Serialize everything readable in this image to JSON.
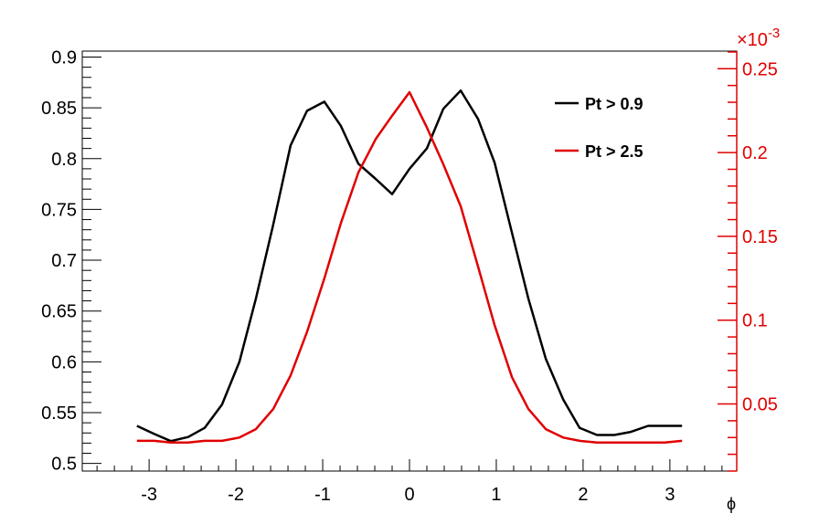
{
  "chart_data": {
    "type": "line",
    "title": "",
    "xlabel": "ϕ",
    "xlim": [
      -3.77,
      3.77
    ],
    "x_ticks": [
      -3,
      -2,
      -1,
      0,
      1,
      2,
      3
    ],
    "x_tick_labels": [
      "-3",
      "-2",
      "-1",
      "0",
      "1",
      "2",
      "3"
    ],
    "y_left": {
      "ylim": [
        0.4925,
        0.9058
      ],
      "ticks": [
        0.5,
        0.55,
        0.6,
        0.65,
        0.7,
        0.75,
        0.8,
        0.85,
        0.9
      ],
      "tick_labels": [
        "0.5",
        "0.55",
        "0.6",
        "0.65",
        "0.7",
        "0.75",
        "0.8",
        "0.85",
        "0.9"
      ],
      "color": "#000000"
    },
    "y_right": {
      "ylim": [
        0.01,
        0.2605
      ],
      "ticks": [
        0.05,
        0.1,
        0.15,
        0.2,
        0.25
      ],
      "tick_labels": [
        "0.05",
        "0.1",
        "0.15",
        "0.2",
        "0.25"
      ],
      "exponent_label": "×10",
      "exponent_power": "-3",
      "color": "#e00000"
    },
    "x": [
      -3.14,
      -2.94,
      -2.75,
      -2.55,
      -2.36,
      -2.16,
      -1.96,
      -1.77,
      -1.57,
      -1.37,
      -1.18,
      -0.98,
      -0.79,
      -0.59,
      -0.39,
      -0.2,
      0.0,
      0.2,
      0.39,
      0.59,
      0.79,
      0.98,
      1.18,
      1.37,
      1.57,
      1.77,
      1.96,
      2.16,
      2.36,
      2.55,
      2.75,
      2.94,
      3.14
    ],
    "series": [
      {
        "name": "Pt > 0.9",
        "axis": "left",
        "color": "#000000",
        "values": [
          0.537,
          0.529,
          0.522,
          0.526,
          0.535,
          0.558,
          0.6,
          0.662,
          0.735,
          0.813,
          0.847,
          0.856,
          0.832,
          0.795,
          0.78,
          0.765,
          0.79,
          0.81,
          0.849,
          0.867,
          0.839,
          0.796,
          0.727,
          0.662,
          0.603,
          0.563,
          0.535,
          0.528,
          0.528,
          0.531,
          0.537,
          0.537,
          0.537
        ]
      },
      {
        "name": "Pt > 2.5",
        "axis": "right",
        "color": "#e00000",
        "values": [
          0.028,
          0.028,
          0.027,
          0.027,
          0.028,
          0.028,
          0.03,
          0.035,
          0.047,
          0.067,
          0.093,
          0.125,
          0.158,
          0.188,
          0.208,
          0.222,
          0.236,
          0.215,
          0.193,
          0.168,
          0.132,
          0.097,
          0.066,
          0.047,
          0.035,
          0.03,
          0.028,
          0.027,
          0.027,
          0.027,
          0.027,
          0.027,
          0.028
        ]
      }
    ],
    "legend_position": "top-right",
    "grid": false
  }
}
